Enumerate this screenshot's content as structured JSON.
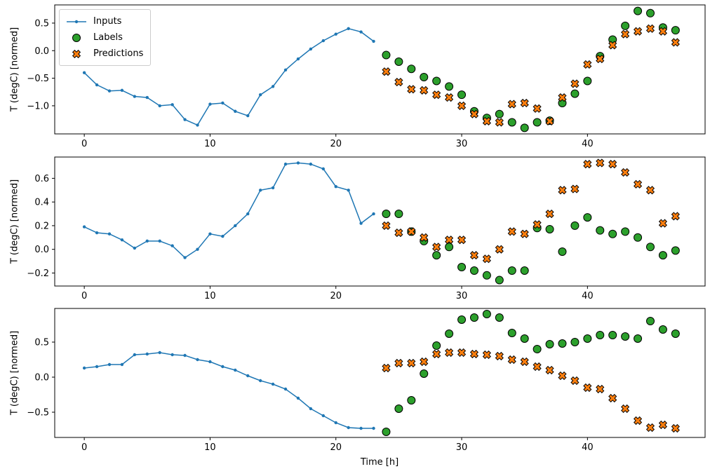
{
  "figure": {
    "background": "#ffffff"
  },
  "chart_data": [
    {
      "type": "line+scatter",
      "title": "",
      "xlabel": "",
      "ylabel": "T (degC) [normed]",
      "xlim": [
        -2.35,
        49.35
      ],
      "ylim": [
        -1.51,
        0.83
      ],
      "xticks": [
        0,
        10,
        20,
        30,
        40
      ],
      "yticks": [
        0.5,
        0.0,
        -0.5,
        -1.0
      ],
      "legend_position": "upper left",
      "series": [
        {
          "name": "Inputs",
          "type": "line",
          "marker": "dot",
          "color": "#1f77b4",
          "x": [
            0,
            1,
            2,
            3,
            4,
            5,
            6,
            7,
            8,
            9,
            10,
            11,
            12,
            13,
            14,
            15,
            16,
            17,
            18,
            19,
            20,
            21,
            22,
            23
          ],
          "y": [
            -0.4,
            -0.62,
            -0.73,
            -0.72,
            -0.83,
            -0.85,
            -1.0,
            -0.98,
            -1.25,
            -1.35,
            -0.97,
            -0.95,
            -1.1,
            -1.18,
            -0.8,
            -0.65,
            -0.35,
            -0.15,
            0.03,
            0.18,
            0.3,
            0.4,
            0.34,
            0.17
          ]
        },
        {
          "name": "Labels",
          "type": "scatter",
          "marker": "circle",
          "color": "#2ca02c",
          "edgecolor": "#000000",
          "x": [
            24,
            25,
            26,
            27,
            28,
            29,
            30,
            31,
            32,
            33,
            34,
            35,
            36,
            37,
            38,
            39,
            40,
            41,
            42,
            43,
            44,
            45,
            46,
            47
          ],
          "y": [
            -0.08,
            -0.2,
            -0.33,
            -0.48,
            -0.55,
            -0.65,
            -0.8,
            -1.1,
            -1.22,
            -1.15,
            -1.3,
            -1.4,
            -1.3,
            -1.27,
            -0.95,
            -0.78,
            -0.55,
            -0.1,
            0.2,
            0.45,
            0.72,
            0.68,
            0.42,
            0.37
          ]
        },
        {
          "name": "Predictions",
          "type": "scatter",
          "marker": "X",
          "color": "#ff7f0e",
          "edgecolor": "#000000",
          "x": [
            24,
            25,
            26,
            27,
            28,
            29,
            30,
            31,
            32,
            33,
            34,
            35,
            36,
            37,
            38,
            39,
            40,
            41,
            42,
            43,
            44,
            45,
            46,
            47
          ],
          "y": [
            -0.38,
            -0.57,
            -0.7,
            -0.72,
            -0.8,
            -0.85,
            -1.0,
            -1.15,
            -1.28,
            -1.3,
            -0.97,
            -0.95,
            -1.05,
            -1.28,
            -0.85,
            -0.6,
            -0.25,
            -0.15,
            0.1,
            0.3,
            0.35,
            0.4,
            0.35,
            0.15
          ]
        }
      ]
    },
    {
      "type": "line+scatter",
      "title": "",
      "xlabel": "",
      "ylabel": "T (degC) [normed]",
      "xlim": [
        -2.35,
        49.35
      ],
      "ylim": [
        -0.31,
        0.78
      ],
      "xticks": [
        0,
        10,
        20,
        30,
        40
      ],
      "yticks": [
        0.6,
        0.4,
        0.2,
        0.0,
        -0.2
      ],
      "series": [
        {
          "name": "Inputs",
          "type": "line",
          "marker": "dot",
          "color": "#1f77b4",
          "x": [
            0,
            1,
            2,
            3,
            4,
            5,
            6,
            7,
            8,
            9,
            10,
            11,
            12,
            13,
            14,
            15,
            16,
            17,
            18,
            19,
            20,
            21,
            22,
            23
          ],
          "y": [
            0.19,
            0.14,
            0.13,
            0.08,
            0.01,
            0.07,
            0.07,
            0.03,
            -0.07,
            0.0,
            0.13,
            0.11,
            0.2,
            0.3,
            0.5,
            0.52,
            0.72,
            0.73,
            0.72,
            0.68,
            0.53,
            0.5,
            0.22,
            0.3
          ]
        },
        {
          "name": "Labels",
          "type": "scatter",
          "marker": "circle",
          "color": "#2ca02c",
          "edgecolor": "#000000",
          "x": [
            24,
            25,
            26,
            27,
            28,
            29,
            30,
            31,
            32,
            33,
            34,
            35,
            36,
            37,
            38,
            39,
            40,
            41,
            42,
            43,
            44,
            45,
            46,
            47
          ],
          "y": [
            0.3,
            0.3,
            0.15,
            0.07,
            -0.05,
            0.02,
            -0.15,
            -0.18,
            -0.22,
            -0.26,
            -0.18,
            -0.18,
            0.18,
            0.17,
            -0.02,
            0.2,
            0.27,
            0.16,
            0.13,
            0.15,
            0.1,
            0.02,
            -0.05,
            -0.01
          ]
        },
        {
          "name": "Predictions",
          "type": "scatter",
          "marker": "X",
          "color": "#ff7f0e",
          "edgecolor": "#000000",
          "x": [
            24,
            25,
            26,
            27,
            28,
            29,
            30,
            31,
            32,
            33,
            34,
            35,
            36,
            37,
            38,
            39,
            40,
            41,
            42,
            43,
            44,
            45,
            46,
            47
          ],
          "y": [
            0.2,
            0.14,
            0.15,
            0.1,
            0.02,
            0.08,
            0.08,
            -0.05,
            -0.08,
            0.0,
            0.15,
            0.13,
            0.21,
            0.3,
            0.5,
            0.51,
            0.72,
            0.73,
            0.72,
            0.65,
            0.55,
            0.5,
            0.22,
            0.28
          ]
        }
      ]
    },
    {
      "type": "line+scatter",
      "title": "",
      "xlabel": "Time [h]",
      "ylabel": "T (degC) [normed]",
      "xlim": [
        -2.35,
        49.35
      ],
      "ylim": [
        -0.86,
        0.98
      ],
      "xticks": [
        0,
        10,
        20,
        30,
        40
      ],
      "yticks": [
        0.5,
        0.0,
        -0.5
      ],
      "series": [
        {
          "name": "Inputs",
          "type": "line",
          "marker": "dot",
          "color": "#1f77b4",
          "x": [
            0,
            1,
            2,
            3,
            4,
            5,
            6,
            7,
            8,
            9,
            10,
            11,
            12,
            13,
            14,
            15,
            16,
            17,
            18,
            19,
            20,
            21,
            22,
            23
          ],
          "y": [
            0.13,
            0.15,
            0.18,
            0.18,
            0.32,
            0.33,
            0.35,
            0.32,
            0.31,
            0.25,
            0.22,
            0.15,
            0.1,
            0.02,
            -0.05,
            -0.1,
            -0.17,
            -0.3,
            -0.45,
            -0.55,
            -0.65,
            -0.72,
            -0.73,
            -0.73
          ]
        },
        {
          "name": "Labels",
          "type": "scatter",
          "marker": "circle",
          "color": "#2ca02c",
          "edgecolor": "#000000",
          "x": [
            24,
            25,
            26,
            27,
            28,
            29,
            30,
            31,
            32,
            33,
            34,
            35,
            36,
            37,
            38,
            39,
            40,
            41,
            42,
            43,
            44,
            45,
            46,
            47
          ],
          "y": [
            -0.78,
            -0.45,
            -0.33,
            0.05,
            0.45,
            0.62,
            0.82,
            0.85,
            0.9,
            0.85,
            0.63,
            0.55,
            0.4,
            0.47,
            0.48,
            0.5,
            0.55,
            0.6,
            0.6,
            0.58,
            0.55,
            0.8,
            0.68,
            0.62
          ]
        },
        {
          "name": "Predictions",
          "type": "scatter",
          "marker": "X",
          "color": "#ff7f0e",
          "edgecolor": "#000000",
          "x": [
            24,
            25,
            26,
            27,
            28,
            29,
            30,
            31,
            32,
            33,
            34,
            35,
            36,
            37,
            38,
            39,
            40,
            41,
            42,
            43,
            44,
            45,
            46,
            47
          ],
          "y": [
            0.13,
            0.2,
            0.2,
            0.22,
            0.33,
            0.35,
            0.35,
            0.33,
            0.32,
            0.3,
            0.25,
            0.22,
            0.15,
            0.1,
            0.02,
            -0.05,
            -0.15,
            -0.17,
            -0.3,
            -0.45,
            -0.62,
            -0.72,
            -0.68,
            -0.73
          ]
        }
      ]
    }
  ]
}
